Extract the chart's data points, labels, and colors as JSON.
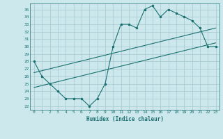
{
  "xlabel": "Humidex (Indice chaleur)",
  "bg_color": "#cce8ec",
  "grid_color": "#aacdd4",
  "line_color": "#1a7070",
  "xlim": [
    -0.5,
    23.5
  ],
  "ylim": [
    21.5,
    35.8
  ],
  "xticks": [
    0,
    1,
    2,
    3,
    4,
    5,
    6,
    7,
    8,
    9,
    10,
    11,
    12,
    13,
    14,
    15,
    16,
    17,
    18,
    19,
    20,
    21,
    22,
    23
  ],
  "yticks": [
    22,
    23,
    24,
    25,
    26,
    27,
    28,
    29,
    30,
    31,
    32,
    33,
    34,
    35
  ],
  "curve1_x": [
    0,
    1,
    2,
    3,
    4,
    5,
    6,
    7,
    8,
    9,
    10,
    11,
    12,
    13,
    14,
    15,
    16,
    17,
    18,
    19,
    20,
    21,
    22,
    23
  ],
  "curve1_y": [
    28,
    26,
    25,
    24,
    23,
    23,
    23,
    22,
    23,
    25,
    30,
    33,
    33,
    32.5,
    35,
    35.5,
    34,
    35,
    34.5,
    34,
    33.5,
    32.5,
    30,
    30
  ],
  "line1_x": [
    0,
    23
  ],
  "line1_y": [
    24.5,
    30.5
  ],
  "line2_x": [
    0,
    23
  ],
  "line2_y": [
    26.5,
    32.5
  ]
}
